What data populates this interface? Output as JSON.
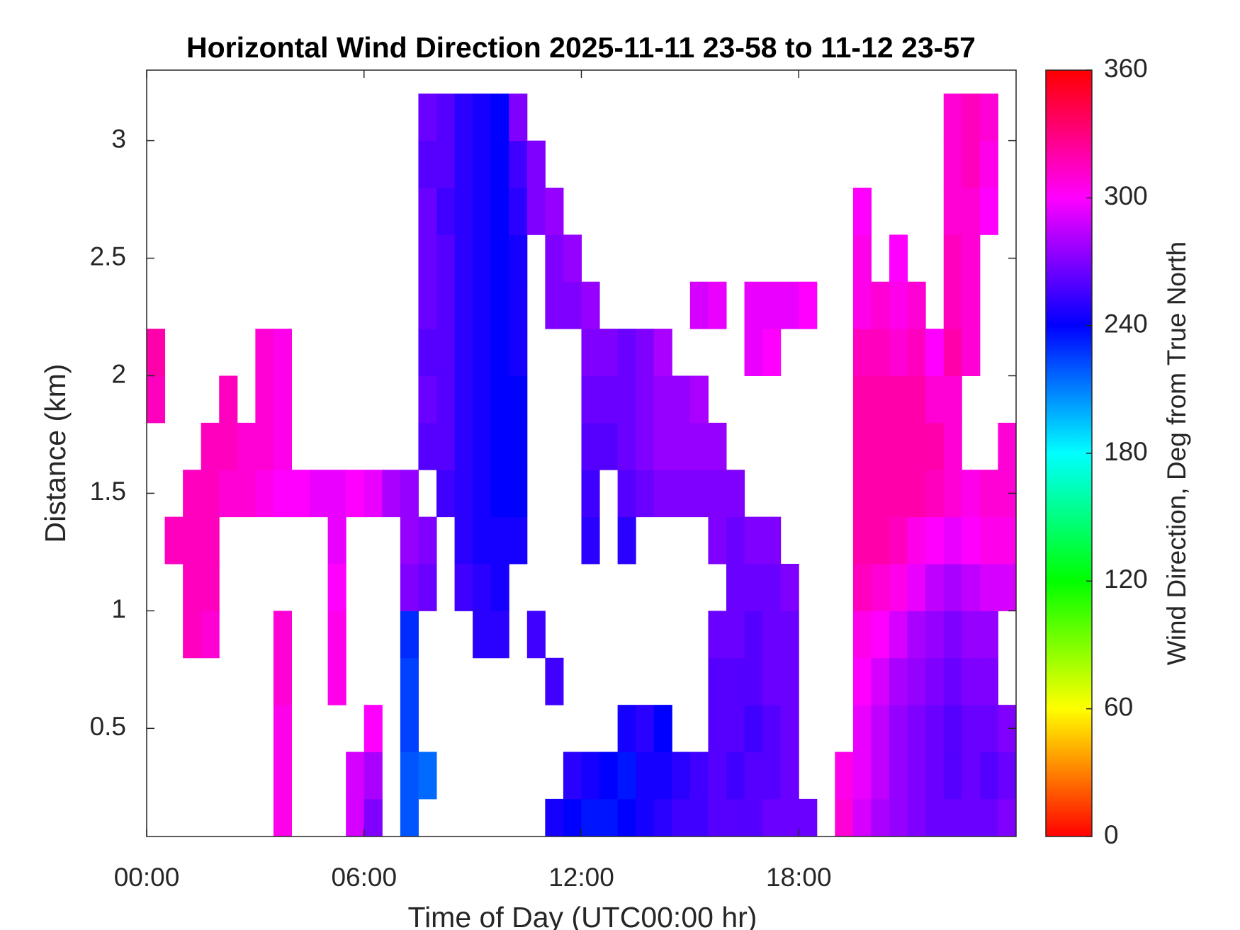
{
  "chart_data": {
    "type": "heatmap",
    "title": "Horizontal Wind Direction 2025-11-11 23-58 to 11-12 23-57",
    "xlabel": "Time of Day (UTC00:00 hr)",
    "ylabel": "Distance (km)",
    "colorbar_label": "Wind Direction, Deg from True North",
    "colormap": "hsv",
    "xlim": [
      0,
      24
    ],
    "ylim": [
      0.04,
      3.3
    ],
    "clim": [
      0,
      360
    ],
    "xticks": [
      {
        "value": 0,
        "label": "00:00"
      },
      {
        "value": 6,
        "label": "06:00"
      },
      {
        "value": 12,
        "label": "12:00"
      },
      {
        "value": 18,
        "label": "18:00"
      }
    ],
    "yticks": [
      0.5,
      1,
      1.5,
      2,
      2.5,
      3
    ],
    "cticks": [
      0,
      60,
      120,
      180,
      240,
      300,
      360
    ],
    "x": [
      0.25,
      0.75,
      1.25,
      1.75,
      2.25,
      2.75,
      3.25,
      3.75,
      4.25,
      4.75,
      5.25,
      5.75,
      6.25,
      6.75,
      7.25,
      7.75,
      8.25,
      8.75,
      9.25,
      9.75,
      10.25,
      10.75,
      11.25,
      11.75,
      12.25,
      12.75,
      13.25,
      13.75,
      14.25,
      14.75,
      15.25,
      15.75,
      16.25,
      16.75,
      17.25,
      17.75,
      18.25,
      18.75,
      19.25,
      19.75,
      20.25,
      20.75,
      21.25,
      21.75,
      22.25,
      22.75,
      23.25,
      23.75
    ],
    "y": [
      0.1,
      0.3,
      0.5,
      0.7,
      0.9,
      1.1,
      1.3,
      1.5,
      1.7,
      1.9,
      2.1,
      2.3,
      2.5,
      2.7,
      2.9,
      3.1
    ],
    "z": [
      [
        null,
        null,
        null,
        null,
        null,
        null,
        null,
        305,
        null,
        null,
        null,
        290,
        270,
        null,
        220,
        null,
        null,
        null,
        null,
        null,
        null,
        null,
        245,
        240,
        235,
        235,
        240,
        245,
        250,
        255,
        255,
        260,
        260,
        260,
        265,
        265,
        265,
        null,
        310,
        290,
        280,
        275,
        270,
        265,
        265,
        265,
        265,
        270
      ],
      [
        null,
        null,
        null,
        null,
        null,
        null,
        null,
        305,
        null,
        null,
        null,
        290,
        280,
        null,
        220,
        215,
        null,
        null,
        null,
        null,
        null,
        null,
        null,
        250,
        245,
        240,
        235,
        245,
        245,
        250,
        255,
        260,
        255,
        260,
        260,
        265,
        null,
        null,
        305,
        295,
        285,
        275,
        270,
        265,
        260,
        265,
        260,
        265
      ],
      [
        null,
        null,
        null,
        null,
        null,
        null,
        null,
        305,
        null,
        null,
        null,
        null,
        300,
        null,
        225,
        null,
        null,
        null,
        null,
        null,
        null,
        null,
        null,
        null,
        null,
        null,
        245,
        250,
        240,
        null,
        null,
        260,
        260,
        255,
        260,
        265,
        null,
        null,
        null,
        295,
        285,
        275,
        270,
        265,
        260,
        265,
        265,
        270
      ],
      [
        null,
        null,
        null,
        null,
        null,
        null,
        null,
        310,
        null,
        null,
        305,
        null,
        null,
        null,
        225,
        null,
        null,
        null,
        null,
        null,
        null,
        null,
        255,
        null,
        null,
        null,
        null,
        null,
        null,
        null,
        null,
        260,
        260,
        260,
        265,
        265,
        null,
        null,
        null,
        300,
        290,
        280,
        275,
        270,
        265,
        270,
        270,
        null
      ],
      [
        null,
        null,
        315,
        310,
        null,
        null,
        null,
        310,
        null,
        null,
        305,
        null,
        null,
        null,
        230,
        null,
        null,
        null,
        250,
        250,
        null,
        255,
        null,
        null,
        null,
        null,
        null,
        null,
        null,
        null,
        null,
        265,
        265,
        260,
        265,
        265,
        null,
        null,
        null,
        305,
        300,
        290,
        280,
        275,
        270,
        275,
        275,
        null
      ],
      [
        null,
        null,
        315,
        315,
        null,
        null,
        null,
        null,
        null,
        null,
        300,
        null,
        null,
        null,
        270,
        265,
        null,
        255,
        250,
        245,
        null,
        null,
        null,
        null,
        null,
        null,
        null,
        null,
        null,
        null,
        null,
        null,
        265,
        265,
        265,
        270,
        null,
        null,
        null,
        315,
        310,
        305,
        295,
        285,
        280,
        285,
        290,
        290
      ],
      [
        null,
        315,
        315,
        315,
        null,
        null,
        null,
        null,
        null,
        null,
        295,
        null,
        null,
        null,
        275,
        270,
        null,
        250,
        245,
        245,
        245,
        null,
        null,
        null,
        250,
        null,
        250,
        null,
        null,
        null,
        null,
        270,
        265,
        270,
        270,
        null,
        null,
        null,
        null,
        320,
        320,
        315,
        305,
        300,
        295,
        300,
        305,
        305
      ],
      [
        null,
        null,
        315,
        315,
        310,
        310,
        305,
        300,
        300,
        295,
        295,
        300,
        295,
        280,
        275,
        null,
        255,
        250,
        245,
        240,
        240,
        null,
        null,
        null,
        255,
        null,
        260,
        265,
        270,
        270,
        270,
        270,
        270,
        null,
        null,
        null,
        null,
        null,
        null,
        320,
        320,
        320,
        320,
        315,
        310,
        305,
        310,
        310
      ],
      [
        null,
        null,
        null,
        315,
        315,
        310,
        310,
        305,
        null,
        null,
        null,
        null,
        null,
        null,
        null,
        260,
        260,
        250,
        245,
        240,
        240,
        null,
        null,
        null,
        260,
        260,
        265,
        270,
        275,
        275,
        275,
        275,
        null,
        null,
        null,
        null,
        null,
        null,
        null,
        320,
        320,
        320,
        320,
        320,
        310,
        null,
        null,
        310
      ],
      [
        315,
        null,
        null,
        null,
        315,
        null,
        310,
        305,
        null,
        null,
        null,
        null,
        null,
        null,
        null,
        265,
        260,
        250,
        245,
        240,
        240,
        null,
        null,
        null,
        265,
        265,
        265,
        270,
        275,
        275,
        280,
        null,
        null,
        null,
        null,
        null,
        null,
        null,
        null,
        320,
        320,
        320,
        320,
        310,
        310,
        null,
        null,
        null
      ],
      [
        320,
        null,
        null,
        null,
        null,
        null,
        310,
        305,
        null,
        null,
        null,
        null,
        null,
        null,
        null,
        260,
        260,
        250,
        245,
        240,
        245,
        null,
        null,
        null,
        270,
        270,
        265,
        270,
        280,
        null,
        null,
        null,
        null,
        295,
        300,
        null,
        null,
        null,
        null,
        315,
        315,
        310,
        315,
        300,
        320,
        310,
        null,
        null
      ],
      [
        null,
        null,
        null,
        null,
        null,
        null,
        null,
        null,
        null,
        null,
        null,
        null,
        null,
        null,
        null,
        265,
        260,
        250,
        245,
        240,
        245,
        null,
        270,
        270,
        275,
        null,
        null,
        null,
        null,
        null,
        290,
        295,
        null,
        295,
        295,
        295,
        300,
        null,
        null,
        305,
        310,
        305,
        310,
        null,
        315,
        310,
        null,
        null
      ],
      [
        null,
        null,
        null,
        null,
        null,
        null,
        null,
        null,
        null,
        null,
        null,
        null,
        null,
        null,
        null,
        265,
        260,
        250,
        245,
        240,
        245,
        null,
        270,
        275,
        null,
        null,
        null,
        null,
        null,
        null,
        null,
        null,
        null,
        null,
        null,
        null,
        null,
        null,
        null,
        305,
        null,
        300,
        null,
        null,
        315,
        310,
        null,
        null
      ],
      [
        null,
        null,
        null,
        null,
        null,
        null,
        null,
        null,
        null,
        null,
        null,
        null,
        null,
        null,
        null,
        265,
        255,
        250,
        245,
        240,
        250,
        270,
        275,
        null,
        null,
        null,
        null,
        null,
        null,
        null,
        null,
        null,
        null,
        null,
        null,
        null,
        null,
        null,
        null,
        300,
        null,
        null,
        null,
        null,
        310,
        310,
        300,
        null
      ],
      [
        null,
        null,
        null,
        null,
        null,
        null,
        null,
        null,
        null,
        null,
        null,
        null,
        null,
        null,
        null,
        260,
        260,
        250,
        245,
        240,
        255,
        270,
        null,
        null,
        null,
        null,
        null,
        null,
        null,
        null,
        null,
        null,
        null,
        null,
        null,
        null,
        null,
        null,
        null,
        null,
        null,
        null,
        null,
        null,
        310,
        315,
        305,
        null
      ],
      [
        null,
        null,
        null,
        null,
        null,
        null,
        null,
        null,
        null,
        null,
        null,
        null,
        null,
        null,
        null,
        265,
        260,
        250,
        245,
        240,
        270,
        null,
        null,
        null,
        null,
        null,
        null,
        null,
        null,
        null,
        null,
        null,
        null,
        null,
        null,
        null,
        null,
        null,
        null,
        null,
        null,
        null,
        null,
        null,
        310,
        315,
        310,
        null
      ]
    ]
  }
}
